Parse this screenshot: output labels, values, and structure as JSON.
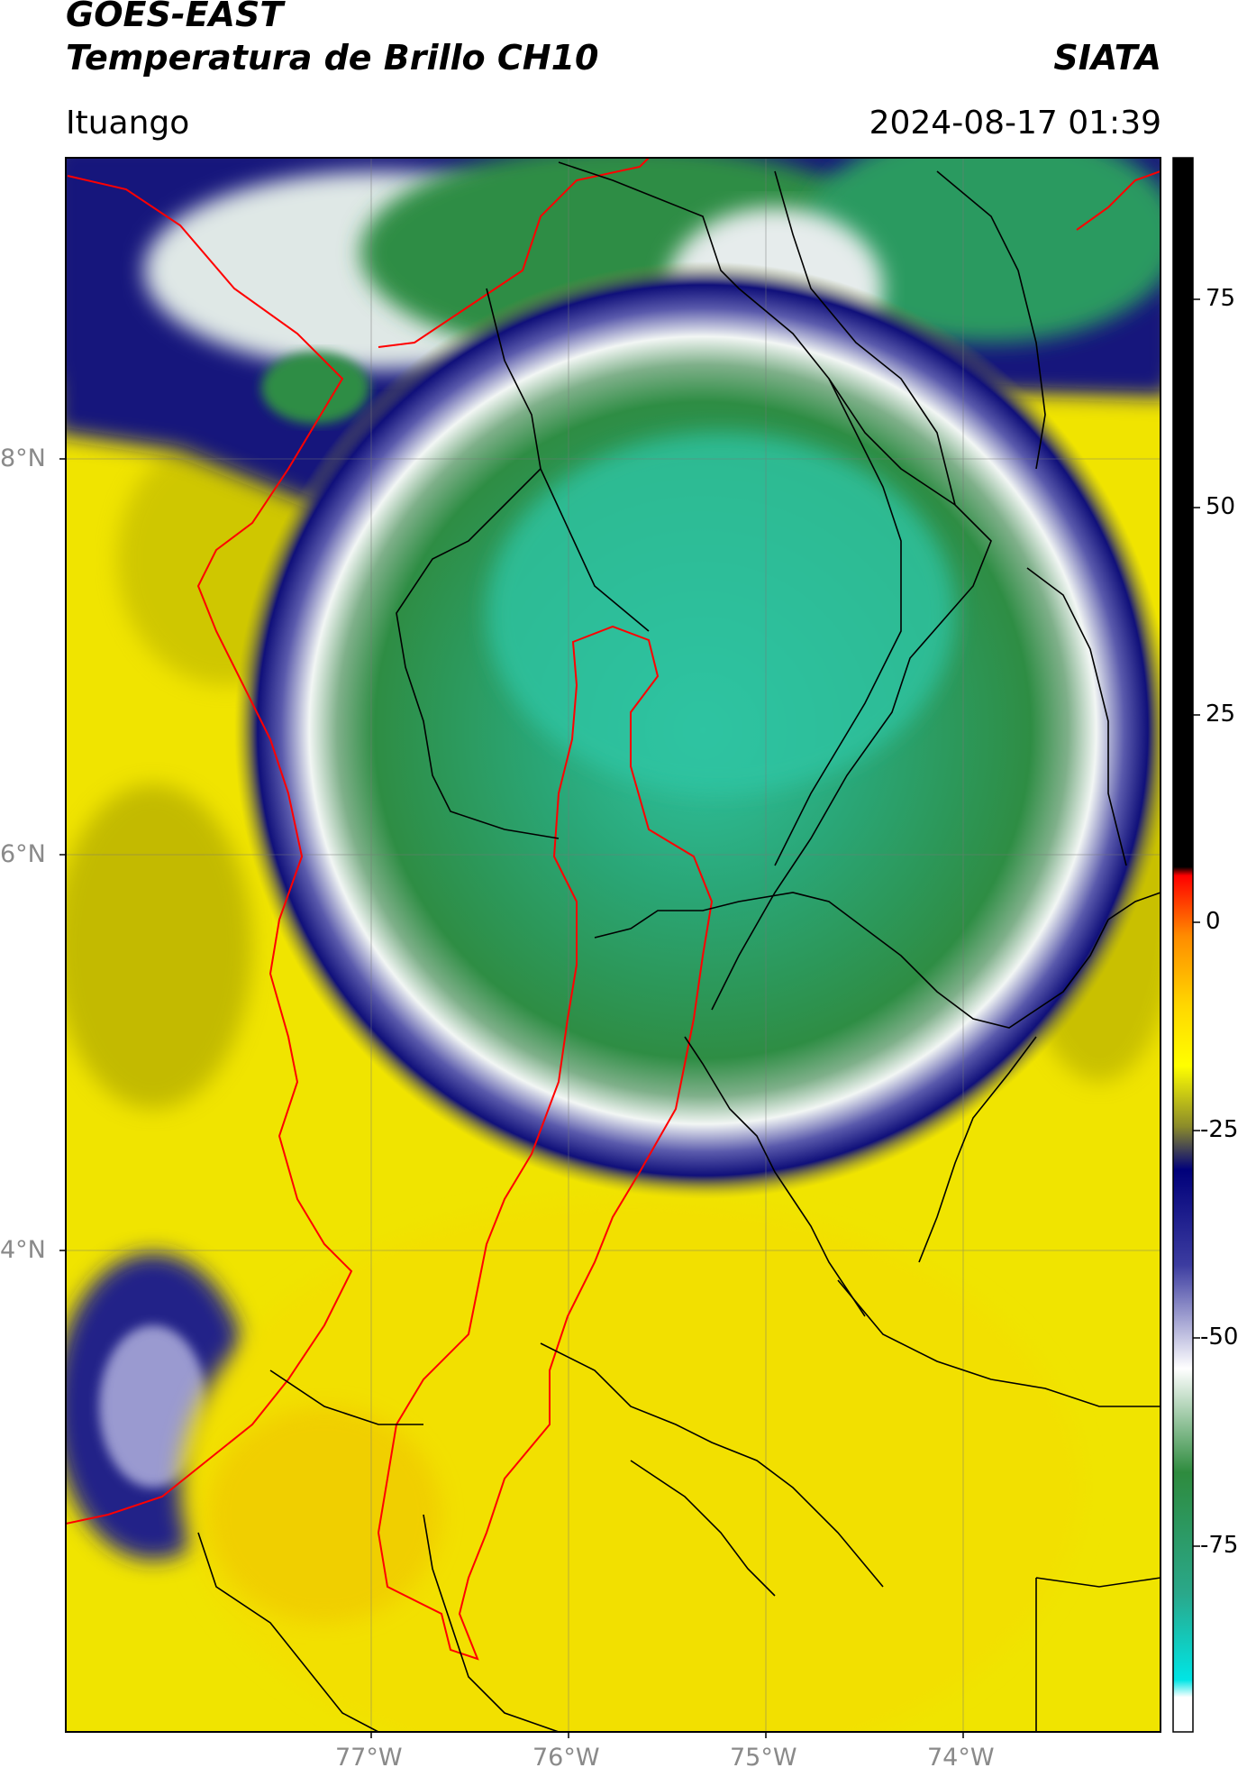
{
  "header": {
    "satellite": "GOES-EAST",
    "product": "Temperatura de Brillo CH10",
    "organization": "SIATA",
    "location": "Ituango",
    "timestamp": "2024-08-17 01:39"
  },
  "map": {
    "lat_labels": [
      "8°N",
      "6°N",
      "4°N"
    ],
    "lon_labels": [
      "77°W",
      "76°W",
      "75°W",
      "74°W"
    ]
  },
  "colorbar": {
    "ticks": [
      "75",
      "50",
      "25",
      "0",
      "-25",
      "-50",
      "-75"
    ],
    "stops": [
      {
        "value": 90,
        "color": "#000000"
      },
      {
        "value": 8,
        "color": "#000000"
      },
      {
        "value": 7,
        "color": "#ff0000"
      },
      {
        "value": 0,
        "color": "#ff8c00"
      },
      {
        "value": -8,
        "color": "#ffd700"
      },
      {
        "value": -15,
        "color": "#ffff00"
      },
      {
        "value": -22,
        "color": "#8b8b2a"
      },
      {
        "value": -27,
        "color": "#00007a"
      },
      {
        "value": -38,
        "color": "#3c3ca0"
      },
      {
        "value": -50,
        "color": "#ffffff"
      },
      {
        "value": -62,
        "color": "#2e8b3e"
      },
      {
        "value": -76,
        "color": "#2aa88a"
      },
      {
        "value": -86,
        "color": "#00e5e5"
      },
      {
        "value": -88,
        "color": "#ffffff"
      },
      {
        "value": -92,
        "color": "#ffffff"
      }
    ]
  },
  "colors": {
    "warm_ground": "#f2e600",
    "cold_core": "#2aa070",
    "coldest": "#30c8a0",
    "ring_white": "#e8eef0",
    "ring_blue": "#14147a",
    "border_country": "#ff0000",
    "border_admin": "#000000"
  }
}
